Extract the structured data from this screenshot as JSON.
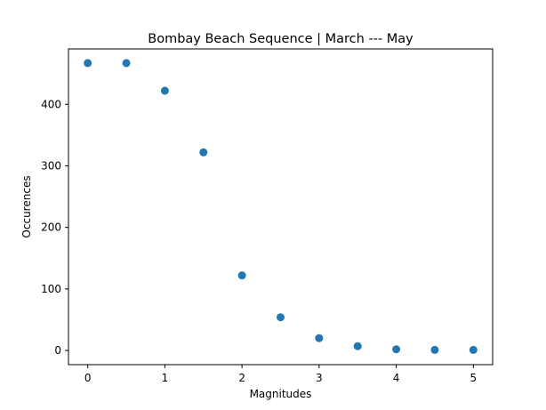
{
  "chart_data": {
    "type": "scatter",
    "title": "Bombay Beach Sequence | March --- May",
    "xlabel": "Magnitudes",
    "ylabel": "Occurences",
    "x": [
      0,
      0.5,
      1,
      1.5,
      2,
      2.5,
      3,
      3.5,
      4,
      4.5,
      5
    ],
    "y": [
      467,
      467,
      422,
      322,
      122,
      54,
      20,
      7,
      2,
      1,
      1
    ],
    "xlim": [
      -0.25,
      5.25
    ],
    "ylim": [
      -23,
      490
    ],
    "xticks": [
      0,
      1,
      2,
      3,
      4,
      5
    ],
    "xtick_labels": [
      "0",
      "1",
      "2",
      "3",
      "4",
      "5"
    ],
    "yticks": [
      0,
      100,
      200,
      300,
      400
    ],
    "ytick_labels": [
      "0",
      "100",
      "200",
      "300",
      "400"
    ],
    "grid": false,
    "marker_color": "#1f77b4"
  }
}
